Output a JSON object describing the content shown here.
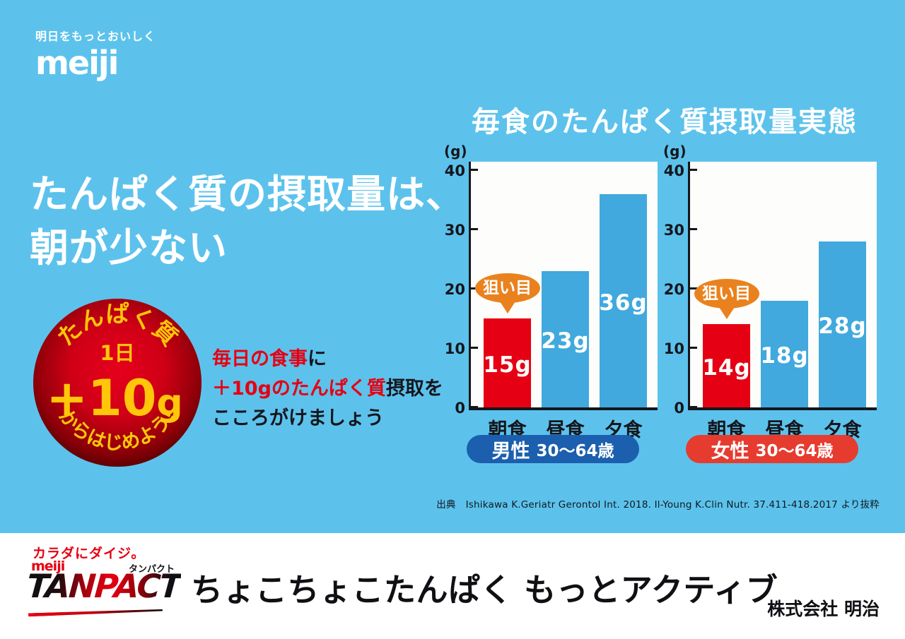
{
  "brand": {
    "tagline": "明日をもっとおいしく",
    "logo": "meiji"
  },
  "headline": {
    "line1": "たんぱく質の摂取量は、",
    "line2": "朝が少ない"
  },
  "badge": {
    "arc_top": "たんぱく質",
    "mid": "1日",
    "big_plus": "+10",
    "big_unit": "g",
    "arc_bottom": "からはじめよう!"
  },
  "promo": {
    "line1_red": "毎日の食事",
    "line1_rest": "に",
    "line2_red": "＋10gのたんぱく質",
    "line2_rest": "摂取を",
    "line3": "こころがけましょう"
  },
  "chart_section": {
    "title": "毎食のたんぱく質摂取量実態",
    "source_label": "出典",
    "source_text": "Ishikawa K.Geriatr Gerontol Int. 2018. Il-Young K.Clin Nutr. 37.411-418.2017 より抜粋"
  },
  "chart_data": [
    {
      "type": "bar",
      "group": "男性 30〜64歳",
      "group_bold": "男性",
      "group_rest": "30〜64歳",
      "group_color": "#1b5fae",
      "categories": [
        "朝食",
        "昼食",
        "夕食"
      ],
      "values": [
        15,
        23,
        36
      ],
      "labels": [
        "15g",
        "23g",
        "36g"
      ],
      "bar_colors": [
        "#e60013",
        "#41a9de",
        "#41a9de"
      ],
      "ylabel": "(g)",
      "yticks": [
        0,
        10,
        20,
        30,
        40
      ],
      "ylim": [
        0,
        41
      ],
      "grid": false,
      "callout": "狙い目",
      "callout_target": "朝食"
    },
    {
      "type": "bar",
      "group": "女性 30〜64歳",
      "group_bold": "女性",
      "group_rest": "30〜64歳",
      "group_color": "#e63c2f",
      "categories": [
        "朝食",
        "昼食",
        "夕食"
      ],
      "values": [
        14,
        18,
        28
      ],
      "labels": [
        "14g",
        "18g",
        "28g"
      ],
      "bar_colors": [
        "#e60013",
        "#41a9de",
        "#41a9de"
      ],
      "ylabel": "(g)",
      "yticks": [
        0,
        10,
        20,
        30,
        40
      ],
      "ylim": [
        0,
        41
      ],
      "grid": false,
      "callout": "狙い目",
      "callout_target": "朝食"
    }
  ],
  "footer": {
    "slogan_small": "カラダにダイジ。",
    "logo_meiji": "meiji",
    "logo_kana": "タンパクト",
    "logo_main": "TANPACT",
    "message": "ちょこちょこたんぱく もっとアクティブ",
    "company": "株式会社 明治"
  },
  "colors": {
    "background": "#5cc2ec",
    "bar_blue": "#41a9de",
    "bar_red": "#e60013",
    "pill_blue": "#1b5fae",
    "pill_red": "#e63c2f",
    "callout_orange": "#e9821e",
    "badge_yellow": "#ffc60a",
    "accent_red": "#e60012",
    "text_dark": "#15161c"
  }
}
